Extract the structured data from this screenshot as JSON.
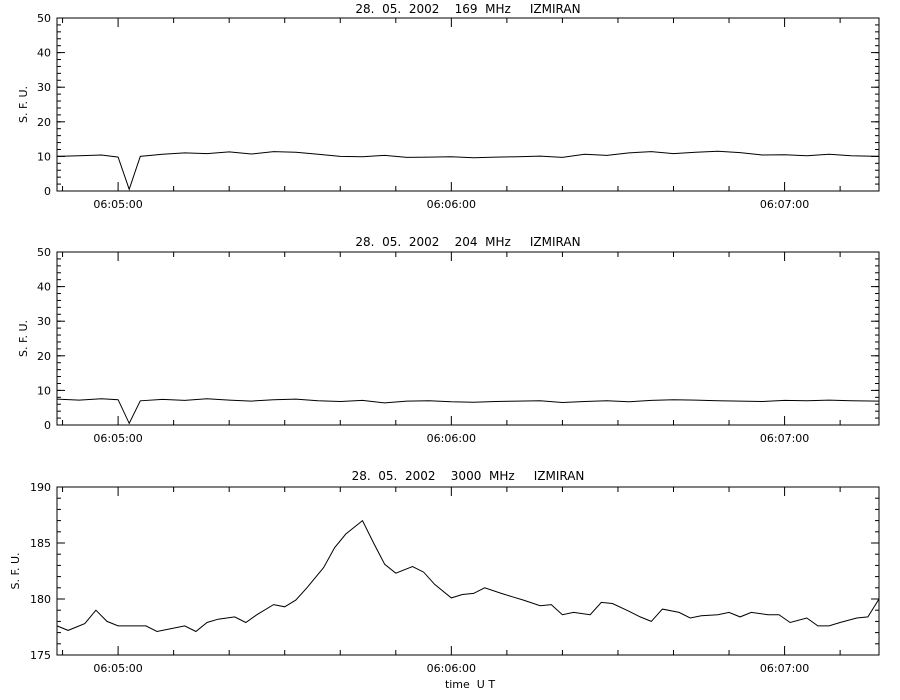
{
  "chart_data": [
    {
      "type": "line",
      "title": "28.  05.  2002    169  MHz     IZMIRAN",
      "xlabel": "",
      "ylabel": "S. F. U.",
      "xlim": [
        "06:04:49",
        "06:07:17"
      ],
      "ylim": [
        0,
        50
      ],
      "yticks": [
        0,
        10,
        20,
        30,
        40,
        50
      ],
      "xticks": [
        "06:05:00",
        "06:06:00",
        "06:07:00"
      ],
      "grid": false,
      "series": [
        {
          "x": [
            "06:04:49",
            "06:04:53",
            "06:04:57",
            "06:05:00",
            "06:05:02",
            "06:05:04",
            "06:05:08",
            "06:05:12",
            "06:05:16",
            "06:05:20",
            "06:05:24",
            "06:05:28",
            "06:05:32",
            "06:05:36",
            "06:05:40",
            "06:05:44",
            "06:05:48",
            "06:05:52",
            "06:05:56",
            "06:06:00",
            "06:06:04",
            "06:06:08",
            "06:06:12",
            "06:06:16",
            "06:06:20",
            "06:06:24",
            "06:06:28",
            "06:06:32",
            "06:06:36",
            "06:06:40",
            "06:06:44",
            "06:06:48",
            "06:06:52",
            "06:06:56",
            "06:07:00",
            "06:07:04",
            "06:07:08",
            "06:07:12",
            "06:07:17"
          ],
          "y": [
            10,
            10.2,
            10.4,
            9.8,
            0.5,
            10,
            10.6,
            11,
            10.8,
            11.3,
            10.7,
            11.4,
            11.2,
            10.6,
            10,
            9.9,
            10.3,
            9.7,
            9.8,
            9.9,
            9.6,
            9.8,
            9.9,
            10.1,
            9.7,
            10.6,
            10.3,
            11,
            11.4,
            10.8,
            11.2,
            11.5,
            11.1,
            10.4,
            10.5,
            10.2,
            10.6,
            10.2,
            10
          ]
        }
      ]
    },
    {
      "type": "line",
      "title": "28.  05.  2002    204  MHz     IZMIRAN",
      "xlabel": "",
      "ylabel": "S. F. U.",
      "xlim": [
        "06:04:49",
        "06:07:17"
      ],
      "ylim": [
        0,
        50
      ],
      "yticks": [
        0,
        10,
        20,
        30,
        40,
        50
      ],
      "xticks": [
        "06:05:00",
        "06:06:00",
        "06:07:00"
      ],
      "grid": false,
      "series": [
        {
          "x": [
            "06:04:49",
            "06:04:53",
            "06:04:57",
            "06:05:00",
            "06:05:02",
            "06:05:04",
            "06:05:08",
            "06:05:12",
            "06:05:16",
            "06:05:20",
            "06:05:24",
            "06:05:28",
            "06:05:32",
            "06:05:36",
            "06:05:40",
            "06:05:44",
            "06:05:48",
            "06:05:52",
            "06:05:56",
            "06:06:00",
            "06:06:04",
            "06:06:08",
            "06:06:12",
            "06:06:16",
            "06:06:20",
            "06:06:24",
            "06:06:28",
            "06:06:32",
            "06:06:36",
            "06:06:40",
            "06:06:44",
            "06:06:48",
            "06:06:52",
            "06:06:56",
            "06:07:00",
            "06:07:04",
            "06:07:08",
            "06:07:12",
            "06:07:17"
          ],
          "y": [
            7.5,
            7.2,
            7.6,
            7.3,
            0.5,
            7,
            7.4,
            7.1,
            7.6,
            7.2,
            6.9,
            7.3,
            7.5,
            7,
            6.8,
            7.1,
            6.4,
            6.9,
            7,
            6.7,
            6.6,
            6.8,
            6.9,
            7,
            6.5,
            6.8,
            7,
            6.7,
            7.1,
            7.3,
            7.2,
            7,
            6.9,
            6.8,
            7.1,
            7,
            7.2,
            7,
            6.9
          ]
        }
      ]
    },
    {
      "type": "line",
      "title": "28.  05.  2002    3000  MHz     IZMIRAN",
      "xlabel": "time  U T",
      "ylabel": "S. F. U.",
      "xlim": [
        "06:04:49",
        "06:07:17"
      ],
      "ylim": [
        175,
        190
      ],
      "yticks": [
        175,
        180,
        185,
        190
      ],
      "xticks": [
        "06:05:00",
        "06:06:00",
        "06:07:00"
      ],
      "grid": false,
      "series": [
        {
          "x": [
            "06:04:49",
            "06:04:51",
            "06:04:54",
            "06:04:56",
            "06:04:58",
            "06:05:00",
            "06:05:02",
            "06:05:05",
            "06:05:07",
            "06:05:09",
            "06:05:12",
            "06:05:14",
            "06:05:16",
            "06:05:18",
            "06:05:21",
            "06:05:23",
            "06:05:25",
            "06:05:28",
            "06:05:30",
            "06:05:32",
            "06:05:34",
            "06:05:37",
            "06:05:39",
            "06:05:41",
            "06:05:44",
            "06:05:46",
            "06:05:48",
            "06:05:50",
            "06:05:53",
            "06:05:55",
            "06:05:57",
            "06:06:00",
            "06:06:02",
            "06:06:04",
            "06:06:06",
            "06:06:09",
            "06:06:11",
            "06:06:13",
            "06:06:16",
            "06:06:18",
            "06:06:20",
            "06:06:22",
            "06:06:25",
            "06:06:27",
            "06:06:29",
            "06:06:32",
            "06:06:34",
            "06:06:36",
            "06:06:38",
            "06:06:41",
            "06:06:43",
            "06:06:45",
            "06:06:48",
            "06:06:50",
            "06:06:52",
            "06:06:54",
            "06:06:57",
            "06:06:59",
            "06:07:01",
            "06:07:04",
            "06:07:06",
            "06:07:08",
            "06:07:10",
            "06:07:13",
            "06:07:15",
            "06:07:17"
          ],
          "y": [
            177.6,
            177.2,
            177.8,
            179,
            178,
            177.6,
            177.6,
            177.6,
            177.1,
            177.3,
            177.6,
            177.1,
            177.9,
            178.2,
            178.4,
            177.9,
            178.6,
            179.5,
            179.3,
            179.9,
            181,
            182.8,
            184.6,
            185.8,
            187,
            185,
            183.1,
            182.3,
            182.9,
            182.4,
            181.3,
            180.1,
            180.4,
            180.5,
            181,
            180.5,
            180.2,
            179.9,
            179.4,
            179.5,
            178.6,
            178.8,
            178.6,
            179.7,
            179.6,
            178.9,
            178.4,
            178,
            179.1,
            178.8,
            178.3,
            178.5,
            178.6,
            178.8,
            178.4,
            178.8,
            178.6,
            178.6,
            177.9,
            178.3,
            177.6,
            177.6,
            177.9,
            178.3,
            178.4,
            180
          ]
        }
      ]
    }
  ]
}
